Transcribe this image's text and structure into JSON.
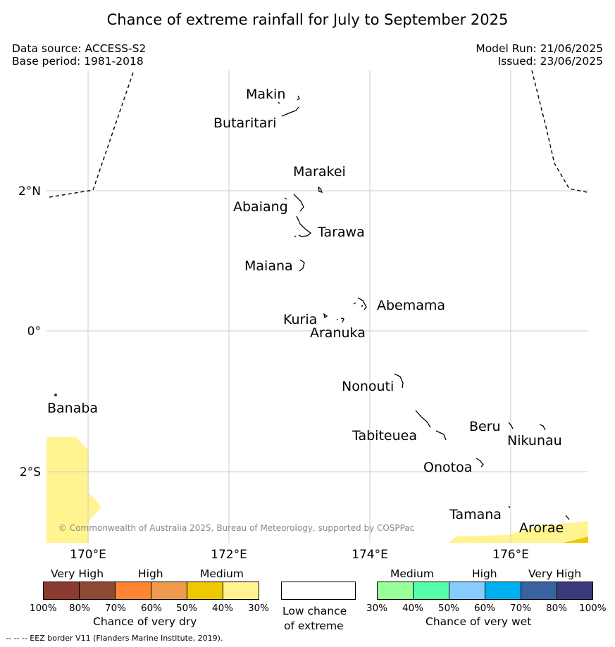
{
  "title": "Chance of extreme rainfall for July to September 2025",
  "header": {
    "data_source": "Data source: ACCESS-S2",
    "base_period": "Base period: 1981-2018",
    "model_run": "Model Run: 21/06/2025",
    "issued": "Issued: 23/06/2025"
  },
  "map": {
    "lat_ticks": [
      "2°N",
      "0°",
      "2°S"
    ],
    "lon_ticks": [
      "170°E",
      "172°E",
      "174°E",
      "176°E"
    ],
    "copyright": "© Commonwealth of Australia 2025, Bureau of Meteorology, supported by COSPPac",
    "islands": {
      "makin": "Makin",
      "butaritari": "Butaritari",
      "marakei": "Marakei",
      "abaiang": "Abaiang",
      "tarawa": "Tarawa",
      "maiana": "Maiana",
      "abemama": "Abemama",
      "kuria": "Kuria",
      "aranuka": "Aranuka",
      "banaba": "Banaba",
      "nonouti": "Nonouti",
      "beru": "Beru",
      "nikunau": "Nikunau",
      "tabiteuea": "Tabiteuea",
      "onotoa": "Onotoa",
      "tamana": "Tamana",
      "arorae": "Arorae"
    }
  },
  "legend": {
    "dry": {
      "categories": [
        "Very High",
        "High",
        "Medium"
      ],
      "colors": [
        "#8b3a2f",
        "#8c4a36",
        "#ff8533",
        "#ee9a4d",
        "#eec800",
        "#fff48f"
      ],
      "percents": [
        "100%",
        "80%",
        "70%",
        "60%",
        "50%",
        "40%",
        "30%"
      ],
      "caption": "Chance of very dry"
    },
    "low": {
      "caption_line1": "Low chance",
      "caption_line2": "of extreme"
    },
    "wet": {
      "categories": [
        "Medium",
        "High",
        "Very High"
      ],
      "colors": [
        "#99ff99",
        "#55ffaa",
        "#88ccff",
        "#00b0f0",
        "#3a62a0",
        "#3b3b7a"
      ],
      "percents": [
        "30%",
        "40%",
        "50%",
        "60%",
        "70%",
        "80%",
        "100%"
      ],
      "caption": "Chance of very wet"
    }
  },
  "footnote": "--  --  -- EEZ border V11 (Flanders Marine Institute, 2019)."
}
